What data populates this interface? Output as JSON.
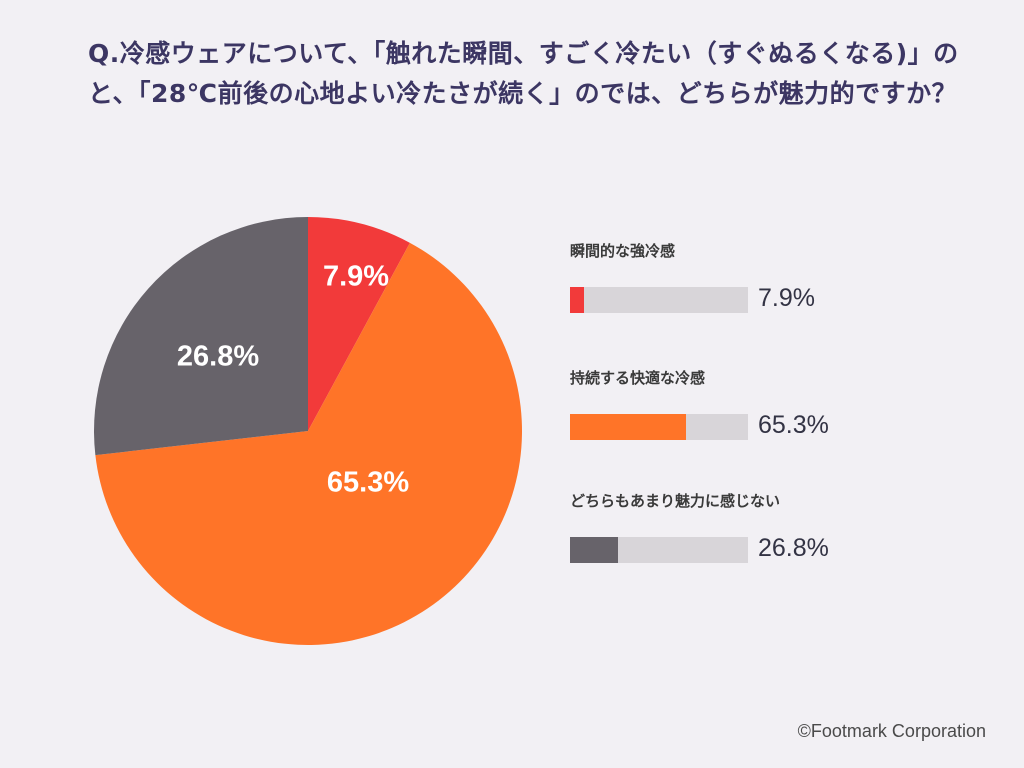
{
  "title": "Q.冷感ウェアについて、「触れた瞬間、すごく冷たい（すぐぬるくなる)」のと、「28℃前後の心地よい冷たさが続く」のでは、どちらが魅力的ですか？",
  "footer": "©Footmark Corporation",
  "chart_data": {
    "type": "pie",
    "title": "Q.冷感ウェアについて、「触れた瞬間、すごく冷たい（すぐぬるくなる)」のと、「28℃前後の心地よい冷たさが続く」のでは、どちらが魅力的ですか？",
    "start": "12 o'clock",
    "direction": "clockwise",
    "legend_position": "right",
    "slices": [
      {
        "label": "瞬間的な強冷感",
        "value": 7.9,
        "display": "7.9%",
        "color": "#f23a3a"
      },
      {
        "label": "持続する快適な冷感",
        "value": 65.3,
        "display": "65.3%",
        "color": "#ff7428"
      },
      {
        "label": "どちらもあまり魅力に感じない",
        "value": 26.8,
        "display": "26.8%",
        "color": "#67636a"
      }
    ]
  }
}
